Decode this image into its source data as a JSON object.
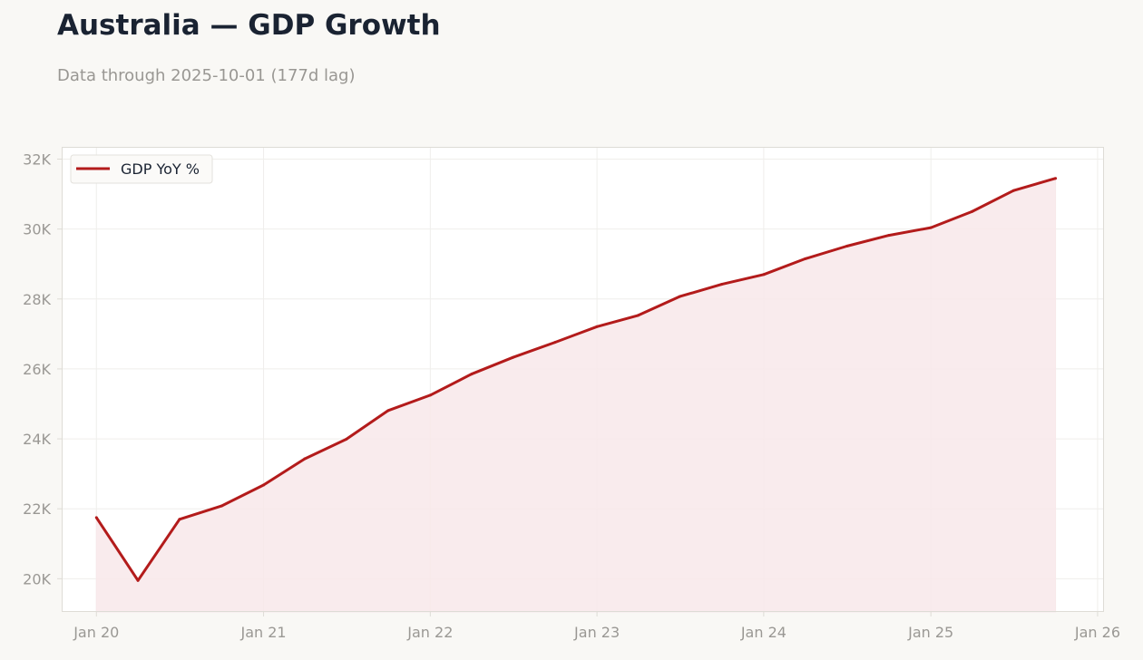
{
  "header": {
    "title": "Australia — GDP Growth",
    "subtitle": "Data through 2025-10-01 (177d lag)"
  },
  "colors": {
    "line": "#b31b1b",
    "fill": "#f8e8ea",
    "grid": "#efeeeb",
    "frame": "#dedcd6",
    "background": "#f9f8f5",
    "plot_background": "#ffffff"
  },
  "chart_data": {
    "type": "area",
    "title": "Australia — GDP Growth",
    "xlabel": "",
    "ylabel": "",
    "xlim": [
      "2019-10-17",
      "2026-01-15"
    ],
    "ylim": [
      19050,
      32350
    ],
    "grid": true,
    "legend_position": "top-left",
    "x_ticks": [
      {
        "date": "2020-01-01",
        "label": "Jan 20"
      },
      {
        "date": "2021-01-01",
        "label": "Jan 21"
      },
      {
        "date": "2022-01-01",
        "label": "Jan 22"
      },
      {
        "date": "2023-01-01",
        "label": "Jan 23"
      },
      {
        "date": "2024-01-01",
        "label": "Jan 24"
      },
      {
        "date": "2025-01-01",
        "label": "Jan 25"
      },
      {
        "date": "2026-01-01",
        "label": "Jan 26"
      }
    ],
    "y_ticks": [
      {
        "value": 20000,
        "label": "20K"
      },
      {
        "value": 22000,
        "label": "22K"
      },
      {
        "value": 24000,
        "label": "24K"
      },
      {
        "value": 26000,
        "label": "26K"
      },
      {
        "value": 28000,
        "label": "28K"
      },
      {
        "value": 30000,
        "label": "30K"
      },
      {
        "value": 32000,
        "label": "32K"
      }
    ],
    "series": [
      {
        "name": "GDP YoY %",
        "points": [
          {
            "x": "2020-01-01",
            "y": 21750
          },
          {
            "x": "2020-04-01",
            "y": 19950
          },
          {
            "x": "2020-07-01",
            "y": 21700
          },
          {
            "x": "2020-10-01",
            "y": 22080
          },
          {
            "x": "2021-01-01",
            "y": 22680
          },
          {
            "x": "2021-04-01",
            "y": 23430
          },
          {
            "x": "2021-07-01",
            "y": 23990
          },
          {
            "x": "2021-10-01",
            "y": 24810
          },
          {
            "x": "2022-01-01",
            "y": 25250
          },
          {
            "x": "2022-04-01",
            "y": 25850
          },
          {
            "x": "2022-07-01",
            "y": 26330
          },
          {
            "x": "2022-10-01",
            "y": 26760
          },
          {
            "x": "2023-01-01",
            "y": 27210
          },
          {
            "x": "2023-04-01",
            "y": 27530
          },
          {
            "x": "2023-07-01",
            "y": 28070
          },
          {
            "x": "2023-10-01",
            "y": 28420
          },
          {
            "x": "2024-01-01",
            "y": 28700
          },
          {
            "x": "2024-04-01",
            "y": 29150
          },
          {
            "x": "2024-07-01",
            "y": 29510
          },
          {
            "x": "2024-10-01",
            "y": 29820
          },
          {
            "x": "2025-01-01",
            "y": 30040
          },
          {
            "x": "2025-04-01",
            "y": 30500
          },
          {
            "x": "2025-07-01",
            "y": 31100
          },
          {
            "x": "2025-10-01",
            "y": 31450
          }
        ]
      }
    ]
  }
}
